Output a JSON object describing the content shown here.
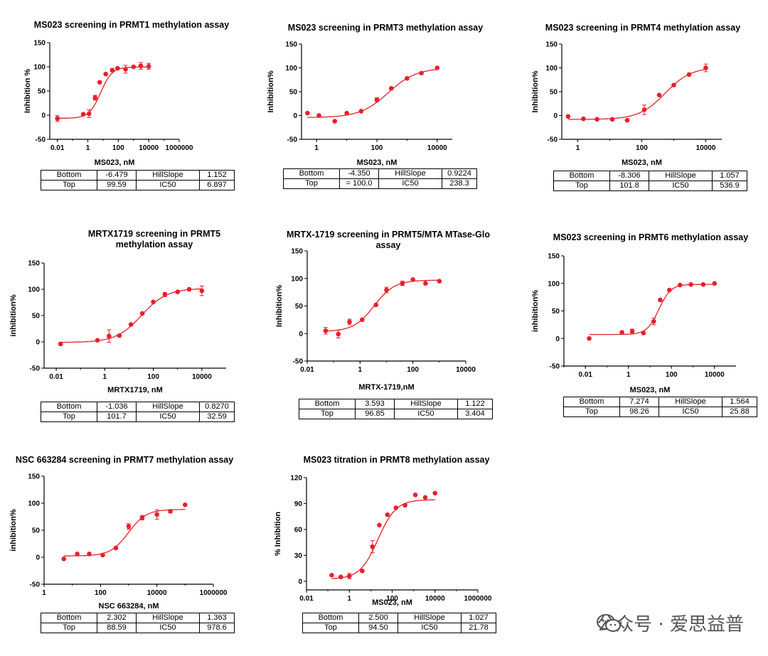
{
  "watermark": {
    "text": "公众号 · 爱思益普"
  },
  "chart_data": [
    {
      "type": "scatter",
      "title": "MS023 screening in PRMT1 methylation assay",
      "xlabel": "MS023, nM",
      "ylabel": "Inhibition %",
      "xscale": "log",
      "xticks": [
        "0.01",
        "1",
        "100",
        "10000",
        "1000000"
      ],
      "yticks": [
        "150",
        "100",
        "50",
        "0",
        "-50"
      ],
      "ylim": [
        -50,
        150
      ],
      "xlim_log": [
        -2.5,
        6
      ],
      "x": [
        0.01,
        0.5,
        1.2,
        3,
        6,
        15,
        40,
        90,
        300,
        1000,
        3000,
        10000
      ],
      "y": [
        -7,
        2,
        3,
        36,
        68,
        85,
        93,
        97,
        95,
        100,
        102,
        101
      ],
      "err": [
        6,
        0,
        8,
        5,
        0,
        0,
        3,
        0,
        8,
        0,
        7,
        6
      ],
      "params": {
        "Bottom": "-6.479",
        "HillSlope": "1.152",
        "Top": "99.59",
        "IC50": "6.897"
      }
    },
    {
      "type": "scatter",
      "title": "MS023 screening in PRMT3 methylation assay",
      "xlabel": "MS023, nM",
      "ylabel": "Inhibition%",
      "xscale": "log",
      "xticks": [
        "1",
        "100",
        "10000"
      ],
      "yticks": [
        "150",
        "100",
        "50",
        "0",
        "-50"
      ],
      "ylim": [
        -50,
        150
      ],
      "xlim_log": [
        -0.5,
        4.5
      ],
      "x": [
        0.5,
        1.2,
        4,
        10,
        30,
        100,
        300,
        1000,
        3000,
        10000
      ],
      "y": [
        5,
        0,
        -12,
        5,
        9,
        33,
        57,
        78,
        89,
        100
      ],
      "err": [
        0,
        0,
        0,
        0,
        0,
        4,
        0,
        0,
        0,
        0
      ],
      "params": {
        "Bottom": "-4.350",
        "HillSlope": "0.9224",
        "Top": "= 100.0",
        "IC50": "238.3"
      }
    },
    {
      "type": "scatter",
      "title": "MS023 screening in PRMT4 methylation assay",
      "xlabel": "MS023, nM",
      "ylabel": "Inhibition%",
      "xscale": "log",
      "xticks": [
        "1",
        "100",
        "10000"
      ],
      "yticks": [
        "150",
        "100",
        "50",
        "0",
        "-50"
      ],
      "ylim": [
        -50,
        150
      ],
      "xlim_log": [
        -0.5,
        4.5
      ],
      "x": [
        0.5,
        1.5,
        4,
        12,
        35,
        120,
        350,
        1000,
        3000,
        10000
      ],
      "y": [
        -2,
        -7,
        -8,
        -8,
        -10,
        12,
        43,
        64,
        86,
        100
      ],
      "err": [
        0,
        0,
        0,
        0,
        0,
        10,
        0,
        0,
        0,
        8
      ],
      "params": {
        "Bottom": "-8.306",
        "HillSlope": "1.057",
        "Top": "101.8",
        "IC50": "536.9"
      }
    },
    {
      "type": "scatter",
      "title": "MRTX1719 screening in PRMT5\nmethylation assay",
      "xlabel": "MRTX1719, nM",
      "ylabel": "inhibition%",
      "xscale": "log",
      "xticks": [
        "0.01",
        "1",
        "100",
        "10000"
      ],
      "yticks": [
        "150",
        "100",
        "50",
        "0",
        "-50"
      ],
      "ylim": [
        -50,
        150
      ],
      "xlim_log": [
        -2.5,
        5
      ],
      "x": [
        0.015,
        0.5,
        1.5,
        4,
        12,
        35,
        100,
        300,
        1000,
        3000,
        10000
      ],
      "y": [
        -4,
        3,
        11,
        12,
        33,
        54,
        76,
        90,
        95,
        100,
        97
      ],
      "err": [
        0,
        0,
        12,
        0,
        0,
        0,
        0,
        4,
        0,
        0,
        9
      ],
      "params": {
        "Bottom": "-1.036",
        "HillSlope": "0.8270",
        "Top": "101.7",
        "IC50": "32.59"
      }
    },
    {
      "type": "scatter",
      "title": "MRTX-1719 screening in PRMT5/MTA MTase-Glo assay",
      "xlabel": "MRTX-1719,nM",
      "ylabel": "Inhibition%",
      "xscale": "log",
      "xticks": [
        "0.01",
        "1",
        "100",
        "10000"
      ],
      "yticks": [
        "150",
        "100",
        "50",
        "0",
        "-50"
      ],
      "ylim": [
        -50,
        150
      ],
      "xlim_log": [
        -2,
        4
      ],
      "x": [
        0.05,
        0.15,
        0.4,
        1.2,
        4,
        10,
        40,
        100,
        300,
        1000
      ],
      "y": [
        5,
        -1,
        21,
        25,
        52,
        79,
        91,
        98,
        91,
        95
      ],
      "err": [
        6,
        7,
        5,
        0,
        0,
        5,
        4,
        0,
        0,
        0
      ],
      "params": {
        "Bottom": "3.593",
        "HillSlope": "1.122",
        "Top": "96.85",
        "IC50": "3.404"
      }
    },
    {
      "type": "scatter",
      "title": "MS023 screening in PRMT6 methylation assay",
      "xlabel": "MS023, nM",
      "ylabel": "inhibition%",
      "xscale": "log",
      "xticks": [
        "0.01",
        "1",
        "100",
        "10000"
      ],
      "yticks": [
        "150",
        "100",
        "50",
        "0",
        "-50"
      ],
      "ylim": [
        -50,
        150
      ],
      "xlim_log": [
        -3,
        5
      ],
      "x": [
        0.015,
        0.5,
        1.5,
        5,
        15,
        30,
        80,
        250,
        800,
        3000,
        10000
      ],
      "y": [
        0,
        11,
        13,
        10,
        31,
        70,
        88,
        97,
        98,
        98,
        100
      ],
      "err": [
        0,
        0,
        4,
        0,
        6,
        0,
        0,
        0,
        0,
        0,
        0
      ],
      "params": {
        "Bottom": "7.274",
        "HillSlope": "1.564",
        "Top": "98.26",
        "IC50": "25.88"
      }
    },
    {
      "type": "scatter",
      "title": "NSC 663284 screening in PRMT7 methylation assay",
      "xlabel": "NSC 663284, nM",
      "ylabel": "inhibition%",
      "xscale": "log",
      "xticks": [
        "1",
        "100",
        "10000",
        "1000000"
      ],
      "yticks": [
        "150",
        "100",
        "50",
        "0",
        "-50"
      ],
      "ylim": [
        -50,
        150
      ],
      "xlim_log": [
        0,
        6
      ],
      "x": [
        5,
        15,
        40,
        120,
        350,
        1000,
        3000,
        10000,
        30000,
        100000
      ],
      "y": [
        -3,
        6,
        6,
        4,
        17,
        57,
        73,
        79,
        85,
        97
      ],
      "err": [
        0,
        0,
        0,
        0,
        0,
        5,
        4,
        9,
        3,
        0
      ],
      "params": {
        "Bottom": "2.302",
        "HillSlope": "1.363",
        "Top": "88.59",
        "IC50": "978.6"
      }
    },
    {
      "type": "scatter",
      "title": "MS023 titration in PRMT8 methylation assay",
      "xlabel": "MS023,  nM",
      "ylabel": "% Inhibition",
      "xscale": "log",
      "xticks": [
        "0.01",
        "1",
        "100",
        "10000",
        "1000000"
      ],
      "yticks": [
        "120",
        "90",
        "60",
        "30",
        "0"
      ],
      "ylim": [
        -10,
        120
      ],
      "xlim_log": [
        -2,
        6
      ],
      "x": [
        0.15,
        0.4,
        1,
        4,
        12,
        25,
        60,
        150,
        400,
        1200,
        3500,
        10000
      ],
      "y": [
        7,
        5,
        6,
        12,
        40,
        65,
        77,
        85,
        88,
        100,
        97,
        102
      ],
      "err": [
        0,
        0,
        3,
        0,
        7,
        0,
        0,
        0,
        0,
        0,
        0,
        0
      ],
      "params": {
        "Bottom": "2.500",
        "HillSlope": "1.027",
        "Top": "94.50",
        "IC50": "21.78"
      }
    }
  ],
  "table_labels": {
    "bottom": "Bottom",
    "hillslope": "HillSlope",
    "top": "Top",
    "ic50": "IC50"
  }
}
